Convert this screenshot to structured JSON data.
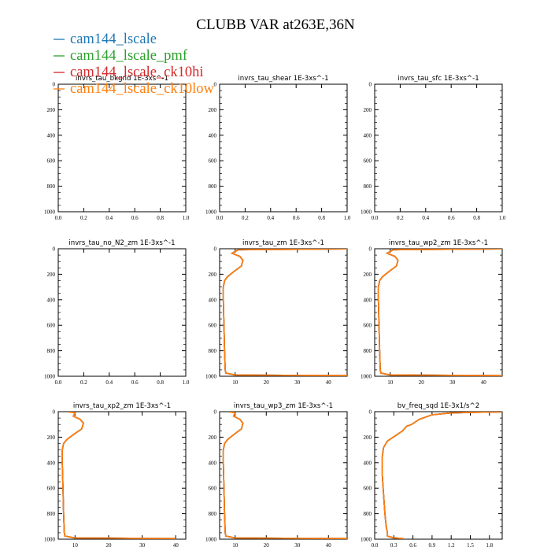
{
  "title": "CLUBB VAR at263E,36N",
  "legend": [
    {
      "name": "cam144_lscale",
      "color": "#1f77b4"
    },
    {
      "name": "cam144_lscale_pmf",
      "color": "#2ca02c"
    },
    {
      "name": "cam144_lscale_ck10hi",
      "color": "#d62728"
    },
    {
      "name": "cam144_lscale_ck10low",
      "color": "#ff7f0e"
    }
  ],
  "chart_data": [
    {
      "type": "line",
      "title": "invrs_tau_bkgnd   1E-3xs^-1",
      "xlim": [
        0,
        1
      ],
      "ylim": [
        1000,
        0
      ],
      "xticks": [
        "0.0",
        "0.2",
        "0.4",
        "0.6",
        "0.8",
        "1.0"
      ],
      "yticks": [
        "0",
        "200",
        "400",
        "600",
        "800",
        "1000"
      ],
      "series": []
    },
    {
      "type": "line",
      "title": "invrs_tau_shear   1E-3xs^-1",
      "xlim": [
        0,
        1
      ],
      "ylim": [
        1000,
        0
      ],
      "xticks": [
        "0.0",
        "0.2",
        "0.4",
        "0.6",
        "0.8",
        "1.0"
      ],
      "yticks": [
        "0",
        "200",
        "400",
        "600",
        "800",
        "1000"
      ],
      "series": []
    },
    {
      "type": "line",
      "title": "invrs_tau_sfc   1E-3xs^-1",
      "xlim": [
        0,
        1
      ],
      "ylim": [
        1000,
        0
      ],
      "xticks": [
        "0.0",
        "0.2",
        "0.4",
        "0.6",
        "0.8",
        "1.0"
      ],
      "yticks": [
        "0",
        "200",
        "400",
        "600",
        "800",
        "1000"
      ],
      "series": []
    },
    {
      "type": "line",
      "title": "invrs_tau_no_N2_zm   1E-3xs^-1",
      "xlim": [
        0,
        1
      ],
      "ylim": [
        1000,
        0
      ],
      "xticks": [
        "0.0",
        "0.2",
        "0.4",
        "0.6",
        "0.8",
        "1.0"
      ],
      "yticks": [
        "0",
        "200",
        "400",
        "600",
        "800",
        "1000"
      ],
      "series": []
    },
    {
      "type": "line",
      "title": "invrs_tau_zm   1E-3xs^-1",
      "xlim": [
        5,
        46
      ],
      "ylim": [
        1000,
        0
      ],
      "xticks": [
        "10",
        "20",
        "30",
        "40"
      ],
      "yticks": [
        "0",
        "200",
        "400",
        "600",
        "800",
        "1000"
      ],
      "series": [
        {
          "x": [
            46,
            11,
            9,
            11.5,
            12.5,
            12,
            9.5,
            7.5,
            6.6,
            6.2,
            6.2,
            6.4,
            6.6,
            6.8,
            7.0,
            10,
            46
          ],
          "y": [
            1,
            8,
            35,
            60,
            90,
            135,
            180,
            220,
            250,
            300,
            400,
            600,
            800,
            950,
            975,
            990,
            995
          ]
        }
      ]
    },
    {
      "type": "line",
      "title": "invrs_tau_wp2_zm   1E-3xs^-1",
      "xlim": [
        5,
        46
      ],
      "ylim": [
        1000,
        0
      ],
      "xticks": [
        "10",
        "20",
        "30",
        "40"
      ],
      "yticks": [
        "0",
        "200",
        "400",
        "600",
        "800",
        "1000"
      ],
      "series": [
        {
          "x": [
            46,
            11,
            9,
            11.5,
            12.5,
            12,
            9.5,
            7.5,
            6.6,
            6.2,
            6.2,
            6.4,
            6.6,
            6.8,
            7.0,
            10,
            46
          ],
          "y": [
            1,
            8,
            35,
            60,
            90,
            135,
            180,
            220,
            250,
            300,
            400,
            600,
            800,
            950,
            975,
            990,
            995
          ]
        }
      ]
    },
    {
      "type": "line",
      "title": "invrs_tau_xp2_zm   1E-3xs^-1",
      "xlim": [
        5,
        43
      ],
      "ylim": [
        1000,
        0
      ],
      "xticks": [
        "10",
        "20",
        "30",
        "40"
      ],
      "yticks": [
        "0",
        "200",
        "400",
        "600",
        "800",
        "1000"
      ],
      "series": [
        {
          "x": [
            8,
            10,
            9.5,
            11.5,
            12.5,
            12,
            9.5,
            7.5,
            6.6,
            6.2,
            6.2,
            6.4,
            6.6,
            6.8,
            7.0,
            10,
            40
          ],
          "y": [
            1,
            8,
            35,
            60,
            90,
            135,
            180,
            220,
            250,
            300,
            400,
            600,
            800,
            950,
            975,
            990,
            995
          ]
        }
      ]
    },
    {
      "type": "line",
      "title": "invrs_tau_wp3_zm   1E-3xs^-1",
      "xlim": [
        5,
        46
      ],
      "ylim": [
        1000,
        0
      ],
      "xticks": [
        "10",
        "20",
        "30",
        "40"
      ],
      "yticks": [
        "0",
        "200",
        "400",
        "600",
        "800",
        "1000"
      ],
      "series": [
        {
          "x": [
            8,
            10,
            9.5,
            11.5,
            12.5,
            12,
            9.5,
            7.5,
            6.6,
            6.2,
            6.2,
            6.4,
            6.6,
            6.8,
            7.0,
            10,
            46
          ],
          "y": [
            1,
            8,
            35,
            60,
            90,
            135,
            180,
            220,
            250,
            300,
            400,
            600,
            800,
            950,
            975,
            990,
            995
          ]
        }
      ]
    },
    {
      "type": "line",
      "title": "bv_freq_sqd   1E-3x1/s^2",
      "xlim": [
        0,
        2.0
      ],
      "ylim": [
        1000,
        0
      ],
      "xticks": [
        "0.0",
        "0.3",
        "0.6",
        "0.9",
        "1.2",
        "1.5",
        "1.8"
      ],
      "yticks": [
        "0",
        "200",
        "400",
        "600",
        "800",
        "1000"
      ],
      "series": [
        {
          "x": [
            2.0,
            1.6,
            1.2,
            0.9,
            0.7,
            0.58,
            0.5,
            0.44,
            0.32,
            0.2,
            0.14,
            0.12,
            0.12,
            0.14,
            0.16,
            0.18,
            0.2,
            0.2,
            0.3,
            0.45
          ],
          "y": [
            2,
            5,
            10,
            25,
            60,
            100,
            115,
            150,
            190,
            230,
            280,
            350,
            500,
            650,
            800,
            900,
            950,
            975,
            990,
            995
          ]
        }
      ]
    }
  ]
}
